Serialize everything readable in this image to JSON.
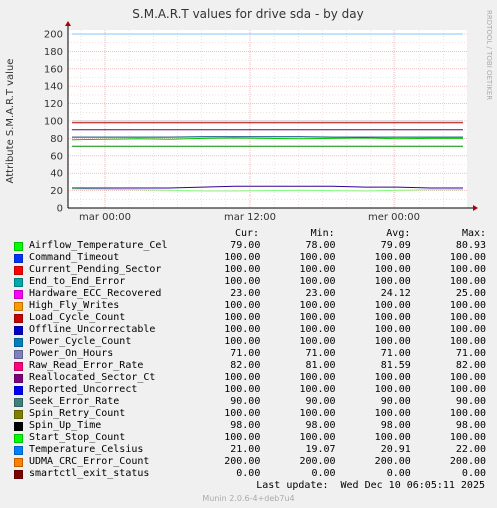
{
  "chart_data": {
    "type": "line",
    "title": "S.M.A.R.T values for drive sda - by day",
    "ylabel": "Attribute S.M.A.R.T value",
    "watermark": "RRDTOOL / TOBI OETIKER",
    "ylim": [
      0,
      200
    ],
    "yticks": [
      0,
      20,
      40,
      60,
      80,
      100,
      120,
      140,
      160,
      180,
      200
    ],
    "xticks": [
      "mar 00:00",
      "mar 12:00",
      "mer 00:00"
    ],
    "grid": true,
    "series": [
      {
        "name": "Airflow_Temperature_Cel",
        "color": "#00cc00",
        "values": [
          78.5,
          79.0,
          79.5,
          79.0,
          80.0,
          80.5,
          80.0,
          79.5,
          80.0,
          80.5,
          79.5,
          80.0,
          80.0
        ]
      },
      {
        "name": "Command_Timeout",
        "color": "#0066b3",
        "values": [
          100,
          100,
          100,
          100,
          100,
          100,
          100,
          100,
          100,
          100,
          100,
          100,
          100
        ]
      },
      {
        "name": "Current_Pending_Sector",
        "color": "#ff8000",
        "values": [
          100,
          100,
          100,
          100,
          100,
          100,
          100,
          100,
          100,
          100,
          100,
          100,
          100
        ]
      },
      {
        "name": "End_to_End_Error",
        "color": "#ffcc00",
        "values": [
          100,
          100,
          100,
          100,
          100,
          100,
          100,
          100,
          100,
          100,
          100,
          100,
          100
        ]
      },
      {
        "name": "Hardware_ECC_Recovered",
        "color": "#330099",
        "values": [
          23,
          23,
          23,
          23,
          24,
          25,
          25,
          25,
          25,
          24,
          24,
          23,
          23
        ]
      },
      {
        "name": "High_Fly_Writes",
        "color": "#990099",
        "values": [
          100,
          100,
          100,
          100,
          100,
          100,
          100,
          100,
          100,
          100,
          100,
          100,
          100
        ]
      },
      {
        "name": "Load_Cycle_Count",
        "color": "#ccff00",
        "values": [
          100,
          100,
          100,
          100,
          100,
          100,
          100,
          100,
          100,
          100,
          100,
          100,
          100
        ]
      },
      {
        "name": "Offline_Uncorrectable",
        "color": "#ff0000",
        "values": [
          100,
          100,
          100,
          100,
          100,
          100,
          100,
          100,
          100,
          100,
          100,
          100,
          100
        ]
      },
      {
        "name": "Power_Cycle_Count",
        "color": "#808080",
        "values": [
          100,
          100,
          100,
          100,
          100,
          100,
          100,
          100,
          100,
          100,
          100,
          100,
          100
        ]
      },
      {
        "name": "Power_On_Hours",
        "color": "#008f00",
        "values": [
          71,
          71,
          71,
          71,
          71,
          71,
          71,
          71,
          71,
          71,
          71,
          71,
          71
        ]
      },
      {
        "name": "Raw_Read_Error_Rate",
        "color": "#00487d",
        "values": [
          81.5,
          81.5,
          81.5,
          81.5,
          82,
          82,
          82,
          82,
          81.5,
          81.5,
          81.5,
          81.5,
          81.5
        ]
      },
      {
        "name": "Reallocated_Sector_Ct",
        "color": "#b35a00",
        "values": [
          100,
          100,
          100,
          100,
          100,
          100,
          100,
          100,
          100,
          100,
          100,
          100,
          100
        ]
      },
      {
        "name": "Reported_Uncorrect",
        "color": "#b38f00",
        "values": [
          100,
          100,
          100,
          100,
          100,
          100,
          100,
          100,
          100,
          100,
          100,
          100,
          100
        ]
      },
      {
        "name": "Seek_Error_Rate",
        "color": "#6b006b",
        "values": [
          90,
          90,
          90,
          90,
          90,
          90,
          90,
          90,
          90,
          90,
          90,
          90,
          90
        ]
      },
      {
        "name": "Spin_Retry_Count",
        "color": "#8fb300",
        "values": [
          100,
          100,
          100,
          100,
          100,
          100,
          100,
          100,
          100,
          100,
          100,
          100,
          100
        ]
      },
      {
        "name": "Spin_Up_Time",
        "color": "#b30000",
        "values": [
          98,
          98,
          98,
          98,
          98,
          98,
          98,
          98,
          98,
          98,
          98,
          98,
          98
        ]
      },
      {
        "name": "Start_Stop_Count",
        "color": "#bebebe",
        "values": [
          100,
          100,
          100,
          100,
          100,
          100,
          100,
          100,
          100,
          100,
          100,
          100,
          100
        ]
      },
      {
        "name": "Temperature_Celsius",
        "color": "#80ff80",
        "values": [
          22,
          21.5,
          21,
          20.5,
          19.5,
          19.5,
          20,
          20.5,
          20,
          19.5,
          20.5,
          21,
          21
        ]
      },
      {
        "name": "UDMA_CRC_Error_Count",
        "color": "#80c9ff",
        "values": [
          200,
          200,
          200,
          200,
          200,
          200,
          200,
          200,
          200,
          200,
          200,
          200,
          200
        ]
      },
      {
        "name": "smartctl_exit_status",
        "color": "#ffc080",
        "values": [
          0,
          0,
          0,
          0,
          0,
          0,
          0,
          0,
          0,
          0,
          0,
          0,
          0
        ]
      }
    ]
  },
  "legend": {
    "headers": {
      "cur": "Cur:",
      "min": "Min:",
      "avg": "Avg:",
      "max": "Max:"
    },
    "rows": [
      {
        "name": "Airflow_Temperature_Cel",
        "color": "#00ff00",
        "cur": "79.00",
        "min": "78.00",
        "avg": "79.09",
        "max": "80.93"
      },
      {
        "name": "Command_Timeout",
        "color": "#0033ff",
        "cur": "100.00",
        "min": "100.00",
        "avg": "100.00",
        "max": "100.00"
      },
      {
        "name": "Current_Pending_Sector",
        "color": "#ff0000",
        "cur": "100.00",
        "min": "100.00",
        "avg": "100.00",
        "max": "100.00"
      },
      {
        "name": "End_to_End_Error",
        "color": "#00aaaa",
        "cur": "100.00",
        "min": "100.00",
        "avg": "100.00",
        "max": "100.00"
      },
      {
        "name": "Hardware_ECC_Recovered",
        "color": "#ff00ff",
        "cur": "23.00",
        "min": "23.00",
        "avg": "24.12",
        "max": "25.00"
      },
      {
        "name": "High_Fly_Writes",
        "color": "#ff9900",
        "cur": "100.00",
        "min": "100.00",
        "avg": "100.00",
        "max": "100.00"
      },
      {
        "name": "Load_Cycle_Count",
        "color": "#cc0000",
        "cur": "100.00",
        "min": "100.00",
        "avg": "100.00",
        "max": "100.00"
      },
      {
        "name": "Offline_Uncorrectable",
        "color": "#0000cc",
        "cur": "100.00",
        "min": "100.00",
        "avg": "100.00",
        "max": "100.00"
      },
      {
        "name": "Power_Cycle_Count",
        "color": "#0080c0",
        "cur": "100.00",
        "min": "100.00",
        "avg": "100.00",
        "max": "100.00"
      },
      {
        "name": "Power_On_Hours",
        "color": "#8080c0",
        "cur": "71.00",
        "min": "71.00",
        "avg": "71.00",
        "max": "71.00"
      },
      {
        "name": "Raw_Read_Error_Rate",
        "color": "#ff0080",
        "cur": "82.00",
        "min": "81.00",
        "avg": "81.59",
        "max": "82.00"
      },
      {
        "name": "Reallocated_Sector_Ct",
        "color": "#800080",
        "cur": "100.00",
        "min": "100.00",
        "avg": "100.00",
        "max": "100.00"
      },
      {
        "name": "Reported_Uncorrect",
        "color": "#0000ff",
        "cur": "100.00",
        "min": "100.00",
        "avg": "100.00",
        "max": "100.00"
      },
      {
        "name": "Seek_Error_Rate",
        "color": "#408080",
        "cur": "90.00",
        "min": "90.00",
        "avg": "90.00",
        "max": "90.00"
      },
      {
        "name": "Spin_Retry_Count",
        "color": "#808000",
        "cur": "100.00",
        "min": "100.00",
        "avg": "100.00",
        "max": "100.00"
      },
      {
        "name": "Spin_Up_Time",
        "color": "#000000",
        "cur": "98.00",
        "min": "98.00",
        "avg": "98.00",
        "max": "98.00"
      },
      {
        "name": "Start_Stop_Count",
        "color": "#00ff00",
        "cur": "100.00",
        "min": "100.00",
        "avg": "100.00",
        "max": "100.00"
      },
      {
        "name": "Temperature_Celsius",
        "color": "#0080ff",
        "cur": "21.00",
        "min": "19.07",
        "avg": "20.91",
        "max": "22.00"
      },
      {
        "name": "UDMA_CRC_Error_Count",
        "color": "#ff8000",
        "cur": "200.00",
        "min": "200.00",
        "avg": "200.00",
        "max": "200.00"
      },
      {
        "name": "smartctl_exit_status",
        "color": "#800000",
        "cur": "0.00",
        "min": "0.00",
        "avg": "0.00",
        "max": "0.00"
      }
    ]
  },
  "last_update": "Last update:  Wed Dec 10 06:05:11 2025",
  "footer": "Munin 2.0.6-4+deb7u4"
}
